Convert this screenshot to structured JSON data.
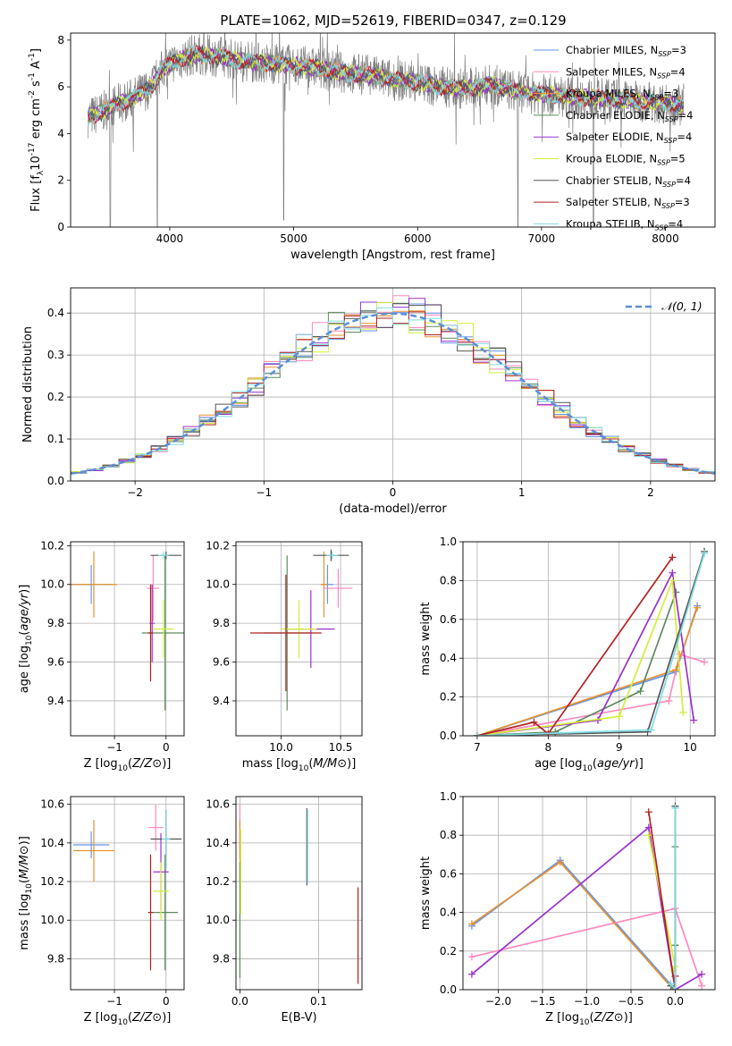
{
  "figure": {
    "title": "PLATE=1062, MJD=52619, FIBERID=0347, z=0.129"
  },
  "colors": {
    "Chabrier MILES": "#6495ed",
    "Salpeter MILES": "#ff88c0",
    "Kroupa MILES": "#e6922e",
    "Chabrier ELODIE": "#5e8a5e",
    "Salpeter ELODIE": "#9932cc",
    "Kroupa ELODIE": "#d4ee3a",
    "Chabrier STELIB": "#555555",
    "Salpeter STELIB": "#b22222",
    "Kroupa STELIB": "#7fdbe4",
    "data": "#808080",
    "gauss": "#5b8fd6",
    "grid": "#b0b0b0"
  },
  "chart_data": [
    {
      "id": "spectrum",
      "type": "line",
      "xlabel": "wavelength [Angstrom, rest frame]",
      "ylabel_parts": [
        "Flux [f",
        "λ",
        "10",
        "-17",
        " erg cm",
        "-2",
        " s",
        "-1",
        " A",
        "-1",
        "]"
      ],
      "xlim": [
        3200,
        8400
      ],
      "ylim": [
        0,
        8.3
      ],
      "xticks": [
        4000,
        5000,
        6000,
        7000,
        8000
      ],
      "yticks": [
        0,
        2,
        4,
        6,
        8
      ],
      "legend_position": "top-right",
      "legend": [
        {
          "name": "Chabrier MILES",
          "nssp": "3"
        },
        {
          "name": "Salpeter MILES",
          "nssp": "4"
        },
        {
          "name": "Kroupa MILES",
          "nssp": "3"
        },
        {
          "name": "Chabrier ELODIE",
          "nssp": "4"
        },
        {
          "name": "Salpeter ELODIE",
          "nssp": "4"
        },
        {
          "name": "Kroupa ELODIE",
          "nssp": "5"
        },
        {
          "name": "Chabrier STELIB",
          "nssp": "4"
        },
        {
          "name": "Salpeter STELIB",
          "nssp": "3"
        },
        {
          "name": "Kroupa STELIB",
          "nssp": "4"
        }
      ],
      "legend_label_prefix": "N",
      "legend_label_sub": "SSP",
      "continuum": {
        "x": [
          3340,
          3450,
          3550,
          3700,
          3850,
          3950,
          4050,
          4200,
          4400,
          4600,
          4800,
          5000,
          5200,
          5400,
          5600,
          5800,
          6000,
          6200,
          6400,
          6600,
          6800,
          7000,
          7200,
          7500,
          7800,
          8000,
          8150
        ],
        "y": [
          4.7,
          4.9,
          5.2,
          5.5,
          6.0,
          6.8,
          7.1,
          7.4,
          7.3,
          7.1,
          7.0,
          6.9,
          6.8,
          6.6,
          6.5,
          6.3,
          6.2,
          6.0,
          5.9,
          6.1,
          5.8,
          5.7,
          5.6,
          5.5,
          5.4,
          5.3,
          5.2
        ]
      },
      "dips": [
        {
          "x": 3520,
          "y": 0.0
        },
        {
          "x": 3900,
          "y": 0.0
        },
        {
          "x": 4920,
          "y": 0.3
        },
        {
          "x": 6810,
          "y": 0.0
        },
        {
          "x": 7420,
          "y": 0.0
        }
      ]
    },
    {
      "id": "residuals",
      "type": "histogram",
      "xlabel": "(data-model)/error",
      "ylabel": "Normed distribution",
      "xlim": [
        -2.5,
        2.5
      ],
      "ylim": [
        0,
        0.46
      ],
      "xticks": [
        -2,
        -1,
        0,
        1,
        2
      ],
      "yticks": [
        0.0,
        0.1,
        0.2,
        0.3,
        0.4
      ],
      "legend_position": "top-right",
      "legend": [
        {
          "name": "𝒩(0, 1)",
          "style": "dashed"
        }
      ],
      "bin_width": 0.125
    },
    {
      "id": "age_vs_Z",
      "type": "errorbar",
      "xlabel": "Z [log10(Z/Z⊙)]",
      "ylabel": "age  [log10(age/yr)]",
      "xlim": [
        -1.85,
        0.35
      ],
      "ylim": [
        9.22,
        10.22
      ],
      "xticks": [
        -1,
        0
      ],
      "yticks": [
        9.4,
        9.6,
        9.8,
        10.0,
        10.2
      ],
      "points": [
        {
          "series": "Chabrier MILES",
          "x": -1.45,
          "y": 10.0,
          "xerr": 0.4,
          "yerr": 0.1
        },
        {
          "series": "Kroupa MILES",
          "x": -1.4,
          "y": 10.0,
          "xerr": 0.45,
          "yerr": 0.17
        },
        {
          "series": "Salpeter MILES",
          "x": -0.25,
          "y": 9.98,
          "xerr": 0.12,
          "yerr": 0.17
        },
        {
          "series": "Chabrier ELODIE",
          "x": -0.02,
          "y": 9.75,
          "xerr": 0.45,
          "yerr": 0.4
        },
        {
          "series": "Salpeter ELODIE",
          "x": -0.27,
          "y": 9.8,
          "xerr": 0.05,
          "yerr": 0.2
        },
        {
          "series": "Kroupa ELODIE",
          "x": -0.05,
          "y": 9.77,
          "xerr": 0.2,
          "yerr": 0.15
        },
        {
          "series": "Chabrier STELIB",
          "x": 0.0,
          "y": 10.15,
          "xerr": 0.3,
          "yerr": 0.02
        },
        {
          "series": "Salpeter STELIB",
          "x": -0.3,
          "y": 9.75,
          "xerr": 0.05,
          "yerr": 0.25
        },
        {
          "series": "Kroupa STELIB",
          "x": -0.05,
          "y": 10.15,
          "xerr": 0.1,
          "yerr": 0.02
        }
      ]
    },
    {
      "id": "age_vs_mass",
      "type": "errorbar",
      "xlabel": "mass [log10(M/M⊙)]",
      "ylabel": "",
      "xlim": [
        9.62,
        10.68
      ],
      "ylim": [
        9.22,
        10.22
      ],
      "xticks": [
        10.0,
        10.5
      ],
      "yticks": [
        9.4,
        9.6,
        9.8,
        10.0,
        10.2
      ],
      "points": [
        {
          "series": "Chabrier MILES",
          "x": 10.39,
          "y": 10.0,
          "xerr": 0.05,
          "yerr": 0.1
        },
        {
          "series": "Kroupa MILES",
          "x": 10.36,
          "y": 10.0,
          "xerr": 0.03,
          "yerr": 0.17
        },
        {
          "series": "Salpeter MILES",
          "x": 10.48,
          "y": 9.98,
          "xerr": 0.12,
          "yerr": 0.1
        },
        {
          "series": "Chabrier ELODIE",
          "x": 10.05,
          "y": 9.75,
          "xerr": 0.2,
          "yerr": 0.4
        },
        {
          "series": "Salpeter ELODIE",
          "x": 10.25,
          "y": 9.77,
          "xerr": 0.2,
          "yerr": 0.2
        },
        {
          "series": "Kroupa ELODIE",
          "x": 10.15,
          "y": 9.77,
          "xerr": 0.15,
          "yerr": 0.15
        },
        {
          "series": "Chabrier STELIB",
          "x": 10.42,
          "y": 10.15,
          "xerr": 0.15,
          "yerr": 0.03
        },
        {
          "series": "Salpeter STELIB",
          "x": 10.04,
          "y": 9.75,
          "xerr": 0.3,
          "yerr": 0.3
        },
        {
          "series": "Kroupa STELIB",
          "x": 10.43,
          "y": 10.15,
          "xerr": 0.05,
          "yerr": 0.02
        }
      ]
    },
    {
      "id": "weight_vs_age",
      "type": "line",
      "xlabel": "age  [log10(age/yr)]",
      "ylabel": "mass weight",
      "xlim": [
        6.8,
        10.35
      ],
      "ylim": [
        0,
        1.0
      ],
      "xticks": [
        7,
        8,
        9,
        10
      ],
      "yticks": [
        0.0,
        0.2,
        0.4,
        0.6,
        0.8,
        1.0
      ],
      "series": [
        {
          "name": "Chabrier MILES",
          "x": [
            7.0,
            9.8,
            10.1
          ],
          "y": [
            0.0,
            0.33,
            0.67
          ]
        },
        {
          "name": "Salpeter MILES",
          "x": [
            7.0,
            9.7,
            9.85,
            10.2
          ],
          "y": [
            0.0,
            0.18,
            0.42,
            0.38
          ]
        },
        {
          "name": "Kroupa MILES",
          "x": [
            7.0,
            9.8,
            10.1
          ],
          "y": [
            0.0,
            0.34,
            0.66
          ]
        },
        {
          "name": "Chabrier ELODIE",
          "x": [
            7.0,
            8.1,
            9.3,
            9.8
          ],
          "y": [
            0.0,
            0.02,
            0.23,
            0.74
          ]
        },
        {
          "name": "Salpeter ELODIE",
          "x": [
            7.0,
            8.7,
            9.75,
            10.05
          ],
          "y": [
            0.0,
            0.08,
            0.84,
            0.08
          ]
        },
        {
          "name": "Kroupa ELODIE",
          "x": [
            7.0,
            9.0,
            9.75,
            9.9
          ],
          "y": [
            0.0,
            0.1,
            0.8,
            0.12
          ]
        },
        {
          "name": "Chabrier STELIB",
          "x": [
            7.0,
            9.4,
            10.2
          ],
          "y": [
            0.0,
            0.02,
            0.95
          ]
        },
        {
          "name": "Salpeter STELIB",
          "x": [
            7.0,
            7.8,
            8.0,
            9.75
          ],
          "y": [
            0.0,
            0.07,
            0.01,
            0.92
          ]
        },
        {
          "name": "Kroupa STELIB",
          "x": [
            7.0,
            9.45,
            10.2
          ],
          "y": [
            0.0,
            0.03,
            0.94
          ]
        }
      ]
    },
    {
      "id": "mass_vs_Z",
      "type": "errorbar",
      "xlabel": "Z [log10(Z/Z⊙)]",
      "ylabel": "mass [log10(M/M⊙)]",
      "xlim": [
        -1.85,
        0.35
      ],
      "ylim": [
        9.64,
        10.64
      ],
      "xticks": [
        -1,
        0
      ],
      "yticks": [
        9.8,
        10.0,
        10.2,
        10.4,
        10.6
      ],
      "points": [
        {
          "series": "Chabrier MILES",
          "x": -1.45,
          "y": 10.39,
          "xerr": 0.35,
          "yerr": 0.07
        },
        {
          "series": "Kroupa MILES",
          "x": -1.4,
          "y": 10.36,
          "xerr": 0.4,
          "yerr": 0.16
        },
        {
          "series": "Salpeter MILES",
          "x": -0.2,
          "y": 10.48,
          "xerr": 0.15,
          "yerr": 0.12
        },
        {
          "series": "Chabrier ELODIE",
          "x": -0.02,
          "y": 10.04,
          "xerr": 0.25,
          "yerr": 0.3
        },
        {
          "series": "Salpeter ELODIE",
          "x": -0.1,
          "y": 10.25,
          "xerr": 0.15,
          "yerr": 0.2
        },
        {
          "series": "Kroupa ELODIE",
          "x": -0.1,
          "y": 10.15,
          "xerr": 0.15,
          "yerr": 0.15
        },
        {
          "series": "Chabrier STELIB",
          "x": 0.0,
          "y": 10.42,
          "xerr": 0.3,
          "yerr": 0.15
        },
        {
          "series": "Salpeter STELIB",
          "x": -0.3,
          "y": 10.04,
          "xerr": 0.05,
          "yerr": 0.3
        },
        {
          "series": "Kroupa STELIB",
          "x": 0.0,
          "y": 10.42,
          "xerr": 0.08,
          "yerr": 0.15
        }
      ]
    },
    {
      "id": "mass_vs_ebv",
      "type": "errorbar",
      "xlabel": "E(B-V)",
      "ylabel": "",
      "xlim": [
        -0.005,
        0.155
      ],
      "ylim": [
        9.64,
        10.64
      ],
      "xticks": [
        0.0,
        0.1
      ],
      "yticks": [
        9.8,
        10.0,
        10.2,
        10.4,
        10.6
      ],
      "points": [
        {
          "series": "Chabrier MILES",
          "x": 0.0,
          "y": 10.39,
          "xerr": 0.0,
          "yerr": 0.07
        },
        {
          "series": "Salpeter MILES",
          "x": 0.0,
          "y": 10.48,
          "xerr": 0.0,
          "yerr": 0.12
        },
        {
          "series": "Kroupa MILES",
          "x": 0.0,
          "y": 10.36,
          "xerr": 0.0,
          "yerr": 0.16
        },
        {
          "series": "Chabrier ELODIE",
          "x": 0.0,
          "y": 10.0,
          "xerr": 0.0,
          "yerr": 0.3
        },
        {
          "series": "Kroupa ELODIE",
          "x": 0.001,
          "y": 10.25,
          "xerr": 0.0,
          "yerr": 0.22
        },
        {
          "series": "Chabrier STELIB",
          "x": 0.085,
          "y": 10.38,
          "xerr": 0.0,
          "yerr": 0.2
        },
        {
          "series": "Kroupa STELIB",
          "x": 0.086,
          "y": 10.38,
          "xerr": 0.0,
          "yerr": 0.19
        },
        {
          "series": "Salpeter STELIB",
          "x": 0.15,
          "y": 9.92,
          "xerr": 0.0,
          "yerr": 0.25
        }
      ]
    },
    {
      "id": "weight_vs_Z",
      "type": "line",
      "xlabel": "Z [log10(Z/Z⊙)]",
      "ylabel": "mass weight",
      "xlim": [
        -2.4,
        0.45
      ],
      "ylim": [
        0,
        1.0
      ],
      "xticks": [
        -2.0,
        -1.5,
        -1.0,
        -0.5,
        0.0
      ],
      "yticks": [
        0.0,
        0.2,
        0.4,
        0.6,
        0.8,
        1.0
      ],
      "series": [
        {
          "name": "Chabrier MILES",
          "x": [
            -2.3,
            -1.3,
            0.0
          ],
          "y": [
            0.33,
            0.67,
            0.0
          ]
        },
        {
          "name": "Salpeter MILES",
          "x": [
            -2.3,
            0.0,
            0.3
          ],
          "y": [
            0.17,
            0.42,
            0.02
          ]
        },
        {
          "name": "Kroupa MILES",
          "x": [
            -2.3,
            -1.3,
            -0.02
          ],
          "y": [
            0.34,
            0.66,
            0.0
          ]
        },
        {
          "name": "Chabrier ELODIE",
          "x": [
            0.0,
            0.0,
            0.0
          ],
          "y": [
            0.0,
            0.23,
            0.74
          ]
        },
        {
          "name": "Salpeter ELODIE",
          "x": [
            -2.3,
            -0.3,
            0.0,
            0.3
          ],
          "y": [
            0.08,
            0.84,
            0.0,
            0.08
          ]
        },
        {
          "name": "Kroupa ELODIE",
          "x": [
            -0.3,
            0.0,
            -0.02
          ],
          "y": [
            0.8,
            0.12,
            0.1
          ]
        },
        {
          "name": "Chabrier STELIB",
          "x": [
            -0.05,
            0.0,
            0.0
          ],
          "y": [
            0.02,
            0.0,
            0.95
          ]
        },
        {
          "name": "Salpeter STELIB",
          "x": [
            -0.3,
            0.0,
            0.0
          ],
          "y": [
            0.92,
            0.0,
            0.07
          ]
        },
        {
          "name": "Kroupa STELIB",
          "x": [
            -0.05,
            0.0,
            0.0
          ],
          "y": [
            0.03,
            0.0,
            0.94
          ]
        }
      ]
    }
  ]
}
